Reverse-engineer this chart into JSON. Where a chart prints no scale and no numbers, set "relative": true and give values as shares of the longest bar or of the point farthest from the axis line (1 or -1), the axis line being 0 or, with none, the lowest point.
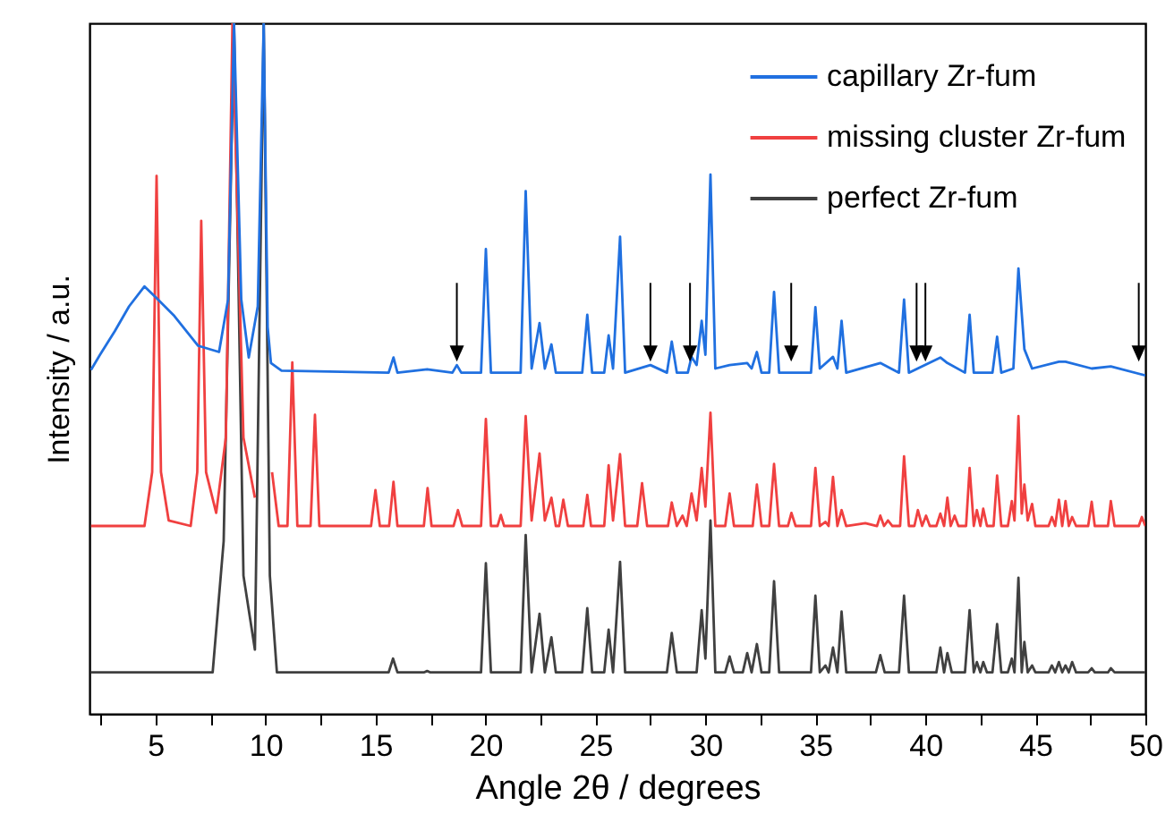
{
  "chart_data": {
    "type": "line",
    "relative": true,
    "xlabel": "Angle 2θ / degrees",
    "ylabel": "Intensity / a.u.",
    "xlim": [
      2,
      50
    ],
    "xticks": [
      {
        "value": 2.5,
        "label": null
      },
      5,
      {
        "value": 7.5,
        "label": null
      },
      10,
      {
        "value": 12.5,
        "label": null
      },
      15,
      {
        "value": 17.5,
        "label": null
      },
      20,
      {
        "value": 22.5,
        "label": null
      },
      25,
      {
        "value": 27.5,
        "label": null
      },
      30,
      {
        "value": 32.5,
        "label": null
      },
      35,
      {
        "value": 37.5,
        "label": null
      },
      40,
      {
        "value": 42.5,
        "label": null
      },
      45,
      {
        "value": 47.5,
        "label": null
      },
      50
    ],
    "legend": "top right",
    "series": [
      {
        "name": "capillary Zr-fum",
        "color": "#2070e0",
        "x": [
          2.07,
          2.48,
          3.15,
          3.8,
          4.5,
          5.05,
          5.86,
          6.94,
          7.89,
          8.3,
          8.57,
          8.9,
          9.24,
          9.65,
          9.92,
          10.1,
          10.25,
          10.73,
          15.6,
          15.82,
          16.0,
          17.35,
          18.5,
          18.7,
          18.9,
          19.8,
          20.02,
          20.25,
          21.6,
          21.83,
          22.1,
          22.46,
          22.7,
          23.0,
          23.2,
          24.4,
          24.63,
          24.85,
          25.4,
          25.6,
          25.8,
          26.12,
          26.35,
          27.5,
          28.25,
          28.47,
          28.7,
          29.2,
          29.37,
          29.6,
          29.83,
          30.0,
          30.23,
          30.45,
          31.1,
          31.9,
          32.1,
          32.34,
          32.55,
          32.9,
          33.12,
          33.35,
          34.8,
          35.0,
          35.2,
          35.8,
          36.0,
          36.19,
          36.4,
          37.95,
          38.8,
          39.03,
          39.25,
          40.68,
          41.0,
          41.8,
          42.01,
          42.2,
          43.05,
          43.26,
          43.45,
          44.0,
          44.23,
          44.5,
          44.85,
          46.07,
          46.37,
          47.56,
          48.43,
          50
        ],
        "values": [
          0.498,
          0.52,
          0.554,
          0.59,
          0.619,
          0.602,
          0.576,
          0.533,
          0.524,
          0.6,
          1,
          0.6,
          0.516,
          0.59,
          1,
          0.56,
          0.508,
          0.497,
          0.494,
          0.516,
          0.494,
          0.499,
          0.494,
          0.505,
          0.494,
          0.494,
          0.673,
          0.494,
          0.494,
          0.757,
          0.5,
          0.566,
          0.5,
          0.535,
          0.494,
          0.494,
          0.578,
          0.494,
          0.494,
          0.548,
          0.5,
          0.691,
          0.494,
          0.505,
          0.494,
          0.539,
          0.494,
          0.494,
          0.517,
          0.505,
          0.569,
          0.52,
          0.781,
          0.5,
          0.505,
          0.508,
          0.5,
          0.524,
          0.494,
          0.494,
          0.611,
          0.494,
          0.494,
          0.589,
          0.5,
          0.517,
          0.5,
          0.569,
          0.494,
          0.508,
          0.494,
          0.6,
          0.494,
          0.516,
          0.508,
          0.494,
          0.578,
          0.494,
          0.494,
          0.546,
          0.494,
          0.5,
          0.645,
          0.528,
          0.5,
          0.51,
          0.51,
          0.5,
          0.503,
          0.49
        ]
      },
      {
        "name": "missing cluster Zr-fum",
        "color": "#f04040",
        "x": [
          2.07,
          4.5,
          4.85,
          5.05,
          5.25,
          5.6,
          6.6,
          6.9,
          7.08,
          7.3,
          7.76,
          8.2,
          8.5,
          9.0,
          9.52,
          9.92,
          10.3,
          10.6,
          11.0,
          11.22,
          11.45,
          12.05,
          12.25,
          12.45,
          14.8,
          15.0,
          15.2,
          15.62,
          15.82,
          16.0,
          17.2,
          17.37,
          17.55,
          18.55,
          18.75,
          18.95,
          19.8,
          20.02,
          20.25,
          20.55,
          20.7,
          20.85,
          21.6,
          21.83,
          22.1,
          22.46,
          22.7,
          23.0,
          23.2,
          23.35,
          23.54,
          23.75,
          24.45,
          24.63,
          24.8,
          25.4,
          25.6,
          25.8,
          26.12,
          26.35,
          26.9,
          27.12,
          27.35,
          28.3,
          28.47,
          28.7,
          28.96,
          29.15,
          29.37,
          29.6,
          29.83,
          30.0,
          30.23,
          30.45,
          30.9,
          31.1,
          31.3,
          32.15,
          32.34,
          32.55,
          32.9,
          33.12,
          33.35,
          33.75,
          33.91,
          34.1,
          34.8,
          35.0,
          35.2,
          35.46,
          35.6,
          35.8,
          36.0,
          36.19,
          36.4,
          37.27,
          37.8,
          37.95,
          38.12,
          38.3,
          38.5,
          38.85,
          39.03,
          39.25,
          39.5,
          39.66,
          39.85,
          40.03,
          40.2,
          40.5,
          40.68,
          40.85,
          41.0,
          41.15,
          41.33,
          41.5,
          41.85,
          42.01,
          42.2,
          42.34,
          42.5,
          42.63,
          42.8,
          43.1,
          43.26,
          43.45,
          43.75,
          43.93,
          44.05,
          44.23,
          44.38,
          44.5,
          44.65,
          44.85,
          45.0,
          45.6,
          45.75,
          45.9,
          46.07,
          46.22,
          46.37,
          46.52,
          46.67,
          46.85,
          47.4,
          47.56,
          47.7,
          48.3,
          48.43,
          48.6,
          49.7,
          49.84,
          50
        ],
        "values": [
          0.272,
          0.272,
          0.35,
          0.779,
          0.35,
          0.28,
          0.272,
          0.35,
          0.714,
          0.35,
          0.291,
          0.4,
          1,
          0.4,
          0.313,
          null,
          0.35,
          0.272,
          0.272,
          0.509,
          0.272,
          0.272,
          0.433,
          0.272,
          0.272,
          0.324,
          0.272,
          0.272,
          0.336,
          0.272,
          0.272,
          0.327,
          0.272,
          0.272,
          0.295,
          0.272,
          0.272,
          0.427,
          0.272,
          0.272,
          0.288,
          0.272,
          0.272,
          0.431,
          0.28,
          0.377,
          0.28,
          0.313,
          0.272,
          0.272,
          0.31,
          0.272,
          0.272,
          0.317,
          0.272,
          0.272,
          0.36,
          0.28,
          0.376,
          0.272,
          0.272,
          0.334,
          0.272,
          0.272,
          0.306,
          0.272,
          0.287,
          0.272,
          0.319,
          0.28,
          0.356,
          0.3,
          0.436,
          0.272,
          0.272,
          0.319,
          0.272,
          0.272,
          0.332,
          0.272,
          0.272,
          0.362,
          0.272,
          0.272,
          0.291,
          0.272,
          0.272,
          0.356,
          0.272,
          0.278,
          0.272,
          0.343,
          0.272,
          0.295,
          0.272,
          0.276,
          0.272,
          0.287,
          0.272,
          0.28,
          0.272,
          0.272,
          0.373,
          0.272,
          0.272,
          0.295,
          0.272,
          0.287,
          0.272,
          0.272,
          0.29,
          0.272,
          0.313,
          0.272,
          0.287,
          0.272,
          0.272,
          0.356,
          0.272,
          0.295,
          0.272,
          0.297,
          0.272,
          0.272,
          0.345,
          0.272,
          0.272,
          0.308,
          0.28,
          0.431,
          0.29,
          0.332,
          0.28,
          0.304,
          0.272,
          0.272,
          0.285,
          0.272,
          0.31,
          0.272,
          0.308,
          0.272,
          0.285,
          0.272,
          0.272,
          0.307,
          0.272,
          0.272,
          0.308,
          0.272,
          0.272,
          0.285,
          0.272
        ]
      },
      {
        "name": "perfect Zr-fum",
        "color": "#404040",
        "x": [
          2.07,
          7.6,
          8.1,
          8.57,
          9.0,
          9.52,
          9.92,
          10.2,
          10.52,
          15.6,
          15.8,
          16.0,
          17.2,
          17.35,
          17.5,
          19.8,
          20.02,
          20.25,
          21.6,
          21.83,
          22.1,
          22.46,
          22.7,
          23.0,
          23.2,
          24.4,
          24.63,
          24.85,
          25.4,
          25.6,
          25.8,
          26.12,
          26.35,
          28.25,
          28.47,
          28.7,
          29.6,
          29.83,
          30.0,
          30.23,
          30.45,
          30.9,
          31.1,
          31.3,
          31.7,
          31.9,
          32.1,
          32.34,
          32.55,
          32.9,
          33.12,
          33.35,
          34.8,
          35.0,
          35.2,
          35.46,
          35.6,
          35.8,
          36.0,
          36.19,
          36.4,
          37.75,
          37.95,
          38.15,
          38.8,
          39.03,
          39.25,
          40.5,
          40.68,
          40.85,
          41.0,
          41.2,
          41.8,
          42.01,
          42.2,
          42.34,
          42.5,
          42.63,
          42.8,
          43.05,
          43.26,
          43.45,
          43.75,
          43.93,
          44.05,
          44.23,
          44.38,
          44.5,
          44.65,
          44.85,
          45.0,
          45.6,
          45.75,
          45.9,
          46.07,
          46.22,
          46.37,
          46.52,
          46.67,
          46.85,
          47.4,
          47.56,
          47.7,
          48.3,
          48.43,
          48.6,
          50
        ],
        "values": [
          0.06,
          0.06,
          0.25,
          1,
          0.2,
          0.093,
          1,
          0.2,
          0.06,
          0.06,
          0.08,
          0.06,
          0.06,
          0.062,
          0.06,
          0.06,
          0.218,
          0.06,
          0.06,
          0.259,
          0.06,
          0.145,
          0.06,
          0.111,
          0.06,
          0.06,
          0.153,
          0.06,
          0.06,
          0.122,
          0.06,
          0.22,
          0.06,
          0.06,
          0.117,
          0.06,
          0.06,
          0.15,
          0.08,
          0.28,
          0.06,
          0.06,
          0.083,
          0.06,
          0.06,
          0.088,
          0.06,
          0.101,
          0.06,
          0.06,
          0.192,
          0.06,
          0.06,
          0.171,
          0.06,
          0.07,
          0.06,
          0.096,
          0.06,
          0.148,
          0.06,
          0.06,
          0.085,
          0.06,
          0.06,
          0.171,
          0.06,
          0.06,
          0.096,
          0.06,
          0.088,
          0.06,
          0.06,
          0.15,
          0.06,
          0.075,
          0.06,
          0.075,
          0.06,
          0.06,
          0.13,
          0.06,
          0.06,
          0.08,
          0.06,
          0.197,
          0.06,
          0.104,
          0.06,
          0.07,
          0.06,
          0.06,
          0.07,
          0.06,
          0.075,
          0.06,
          0.07,
          0.06,
          0.075,
          0.06,
          0.06,
          0.066,
          0.06,
          0.06,
          0.066,
          0.06,
          0.06
        ]
      }
    ]
  }
}
